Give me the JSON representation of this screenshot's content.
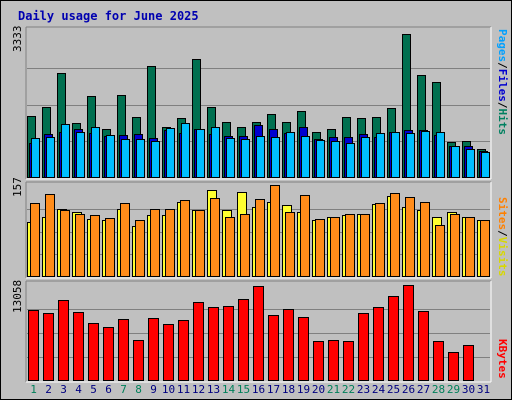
{
  "chart_data": {
    "type": "bar",
    "title": "Daily usage for June 2025",
    "categories": [
      "1",
      "2",
      "3",
      "4",
      "5",
      "6",
      "7",
      "8",
      "9",
      "10",
      "11",
      "12",
      "13",
      "14",
      "15",
      "16",
      "17",
      "18",
      "19",
      "20",
      "21",
      "22",
      "23",
      "24",
      "25",
      "26",
      "27",
      "28",
      "29",
      "30",
      "31"
    ],
    "weekend_days": [
      1,
      7,
      8,
      14,
      15,
      21,
      22,
      28,
      29
    ],
    "panels": [
      {
        "name": "hits-files-pages",
        "ymax_label": "3333",
        "ylim": [
          0,
          3333
        ],
        "right_labels": [
          {
            "text": "Pages",
            "color": "#00a0ff"
          },
          {
            "text": "/",
            "color": "#000000"
          },
          {
            "text": "Files",
            "color": "#0000d0"
          },
          {
            "text": "/",
            "color": "#000000"
          },
          {
            "text": "Hits",
            "color": "#008060"
          }
        ],
        "series": [
          {
            "name": "Hits",
            "color": "#007050",
            "values": [
              1400,
              1620,
              2380,
              1250,
              1870,
              1120,
              1890,
              1380,
              2540,
              1150,
              1350,
              2700,
              1600,
              1270,
              1160,
              1260,
              1450,
              1280,
              1520,
              1040,
              1100,
              1380,
              1350,
              1380,
              1580,
              3270,
              2340,
              2170,
              810,
              840,
              650
            ]
          },
          {
            "name": "Files",
            "color": "#0000d0",
            "values": [
              800,
              1000,
              1040,
              1120,
              1030,
              950,
              970,
              990,
              900,
              1090,
              1020,
              1120,
              1000,
              960,
              950,
              1200,
              1120,
              1010,
              1150,
              880,
              930,
              940,
              990,
              940,
              1040,
              1080,
              1080,
              980,
              720,
              720,
              610
            ]
          },
          {
            "name": "Pages",
            "color": "#00bfff",
            "values": [
              900,
              930,
              1230,
              1050,
              1150,
              970,
              880,
              880,
              850,
              1140,
              1240,
              1110,
              1160,
              900,
              890,
              950,
              940,
              1040,
              950,
              870,
              850,
              800,
              930,
              1030,
              1040,
              1020,
              1070,
              1040,
              730,
              660,
              600
            ]
          }
        ]
      },
      {
        "name": "visits-sites",
        "ymax_label": "157",
        "ylim": [
          0,
          157
        ],
        "right_labels": [
          {
            "text": "Sites",
            "color": "#ff8000"
          },
          {
            "text": "/",
            "color": "#000000"
          },
          {
            "text": "Visits",
            "color": "#d8d800"
          }
        ],
        "series": [
          {
            "name": "Visits",
            "color": "#ffff30",
            "values": [
              95,
              103,
              118,
              113,
              100,
              98,
              117,
              88,
              107,
              107,
              130,
              115,
              150,
              115,
              147,
              121,
              130,
              125,
              113,
              98,
              103,
              107,
              108,
              126,
              140,
              120,
              115,
              103,
              113,
              103,
              98
            ]
          },
          {
            "name": "Sites",
            "color": "#ff8c1a",
            "values": [
              128,
              143,
              115,
              108,
              107,
              102,
              127,
              98,
              117,
              117,
              133,
              116,
              137,
              103,
              108,
              135,
              158,
              112,
              142,
              100,
              103,
              108,
              108,
              128,
              145,
              138,
              130,
              90,
              108,
              103,
              98
            ]
          }
        ]
      },
      {
        "name": "kbytes",
        "ymax_label": "13058",
        "ylim": [
          0,
          13058
        ],
        "right_labels": [
          {
            "text": "KBytes",
            "color": "#ff0000"
          }
        ],
        "series": [
          {
            "name": "KBytes",
            "color": "#ff0000",
            "values": [
              9600,
              9200,
              11000,
              9400,
              7900,
              7400,
              8400,
              5600,
              8600,
              7700,
              8300,
              10700,
              10100,
              10200,
              11200,
              12900,
              9000,
              9800,
              8700,
              5400,
              5600,
              5500,
              9300,
              10100,
              11500,
              13100,
              9500,
              5400,
              4000,
              4900,
              0
            ]
          }
        ]
      }
    ]
  }
}
